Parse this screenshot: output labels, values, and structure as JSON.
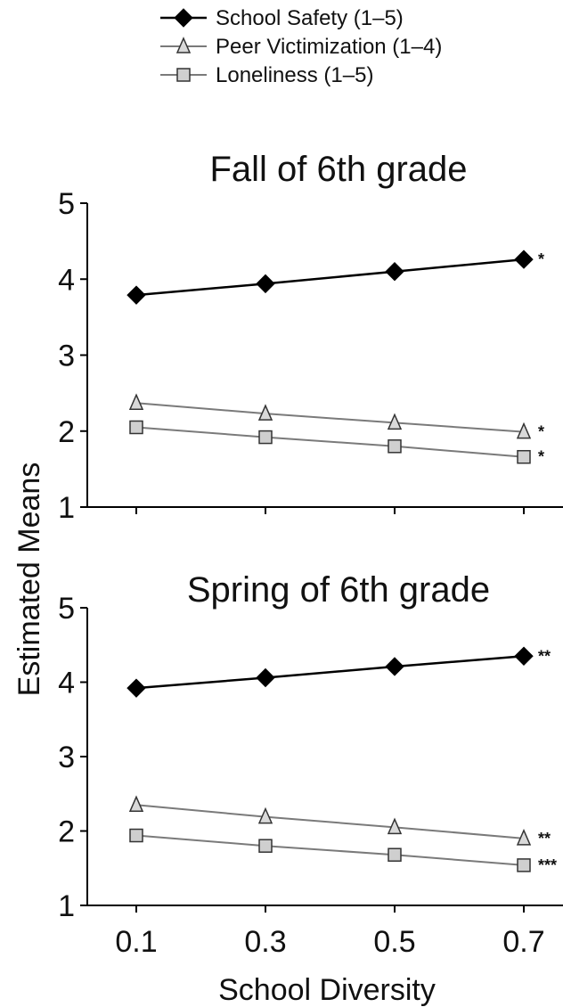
{
  "chart_data": [
    {
      "type": "line",
      "title": "Fall of 6th grade",
      "xlabel": "School Diversity",
      "ylabel": "Estimated Means",
      "x": [
        0.1,
        0.3,
        0.5,
        0.7
      ],
      "ylim": [
        1,
        5
      ],
      "yticks": [
        "1",
        "2",
        "3",
        "4",
        "5"
      ],
      "xticks": [],
      "series": [
        {
          "name": "School Safety (1–5)",
          "values": [
            3.79,
            3.94,
            4.1,
            4.26
          ],
          "marker": "diamond",
          "color": "#000000",
          "significance": "*"
        },
        {
          "name": "Peer Victimization (1–4)",
          "values": [
            2.37,
            2.23,
            2.11,
            1.99
          ],
          "marker": "triangle",
          "color": "#7a7a7a",
          "significance": "*"
        },
        {
          "name": "Loneliness (1–5)",
          "values": [
            2.05,
            1.92,
            1.8,
            1.66
          ],
          "marker": "square",
          "color": "#7a7a7a",
          "significance": "*"
        }
      ]
    },
    {
      "type": "line",
      "title": "Spring of 6th grade",
      "xlabel": "School Diversity",
      "ylabel": "Estimated Means",
      "x": [
        0.1,
        0.3,
        0.5,
        0.7
      ],
      "ylim": [
        1,
        5
      ],
      "yticks": [
        "1",
        "2",
        "3",
        "4",
        "5"
      ],
      "xticks": [
        "0.1",
        "0.3",
        "0.5",
        "0.7"
      ],
      "series": [
        {
          "name": "School Safety (1–5)",
          "values": [
            3.92,
            4.06,
            4.21,
            4.35
          ],
          "marker": "diamond",
          "color": "#000000",
          "significance": "**"
        },
        {
          "name": "Peer Victimization (1–4)",
          "values": [
            2.35,
            2.19,
            2.05,
            1.9
          ],
          "marker": "triangle",
          "color": "#7a7a7a",
          "significance": "**"
        },
        {
          "name": "Loneliness (1–5)",
          "values": [
            1.94,
            1.8,
            1.68,
            1.54
          ],
          "marker": "square",
          "color": "#7a7a7a",
          "significance": "***"
        }
      ]
    }
  ],
  "legend": {
    "placement": "top",
    "entries": [
      {
        "label": "School Safety (1–5)",
        "marker": "diamond"
      },
      {
        "label": "Peer Victimization (1–4)",
        "marker": "triangle"
      },
      {
        "label": "Loneliness (1–5)",
        "marker": "square"
      }
    ]
  },
  "colors": {
    "safety": "#000000",
    "gray_line": "#7a7a7a",
    "square_fill": "#cfcfcf",
    "triangle_fill": "#d9d9d9"
  }
}
